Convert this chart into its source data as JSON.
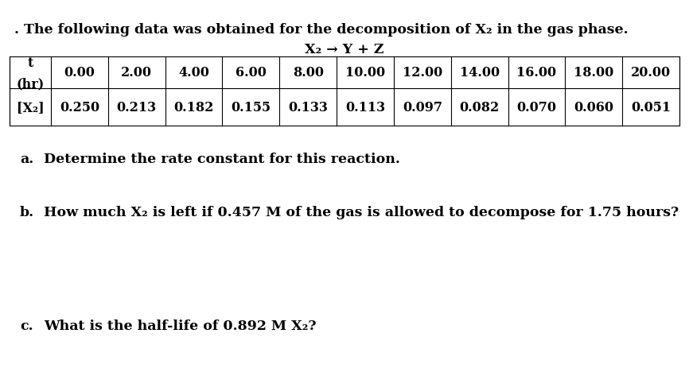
{
  "title_prefix": ". ",
  "title": "The following data was obtained for the decomposition of X₂ in the gas phase.",
  "reaction": "X₂ → Y + Z",
  "t_label": "t\n(hr)",
  "x2_label": "[X₂]",
  "time_values": [
    "0.00",
    "2.00",
    "4.00",
    "6.00",
    "8.00",
    "10.00",
    "12.00",
    "14.00",
    "16.00",
    "18.00",
    "20.00"
  ],
  "conc_values": [
    "0.250",
    "0.213",
    "0.182",
    "0.155",
    "0.133",
    "0.113",
    "0.097",
    "0.082",
    "0.070",
    "0.060",
    "0.051"
  ],
  "q_a_prefix": "a.",
  "q_a_text": "   Determine the rate constant for this reaction.",
  "q_b_prefix": "b.",
  "q_b_text": "   How much X₂ is left if 0.457 M of the gas is allowed to decompose for 1.75 hours?",
  "q_c_prefix": "c.",
  "q_c_text": "   What is the half-life of 0.892 M X₂?",
  "bg_color": "#ffffff",
  "text_color": "#000000",
  "font_size_title": 12.5,
  "font_size_table": 11.5,
  "font_size_questions": 12.5,
  "font_family": "DejaVu Serif"
}
